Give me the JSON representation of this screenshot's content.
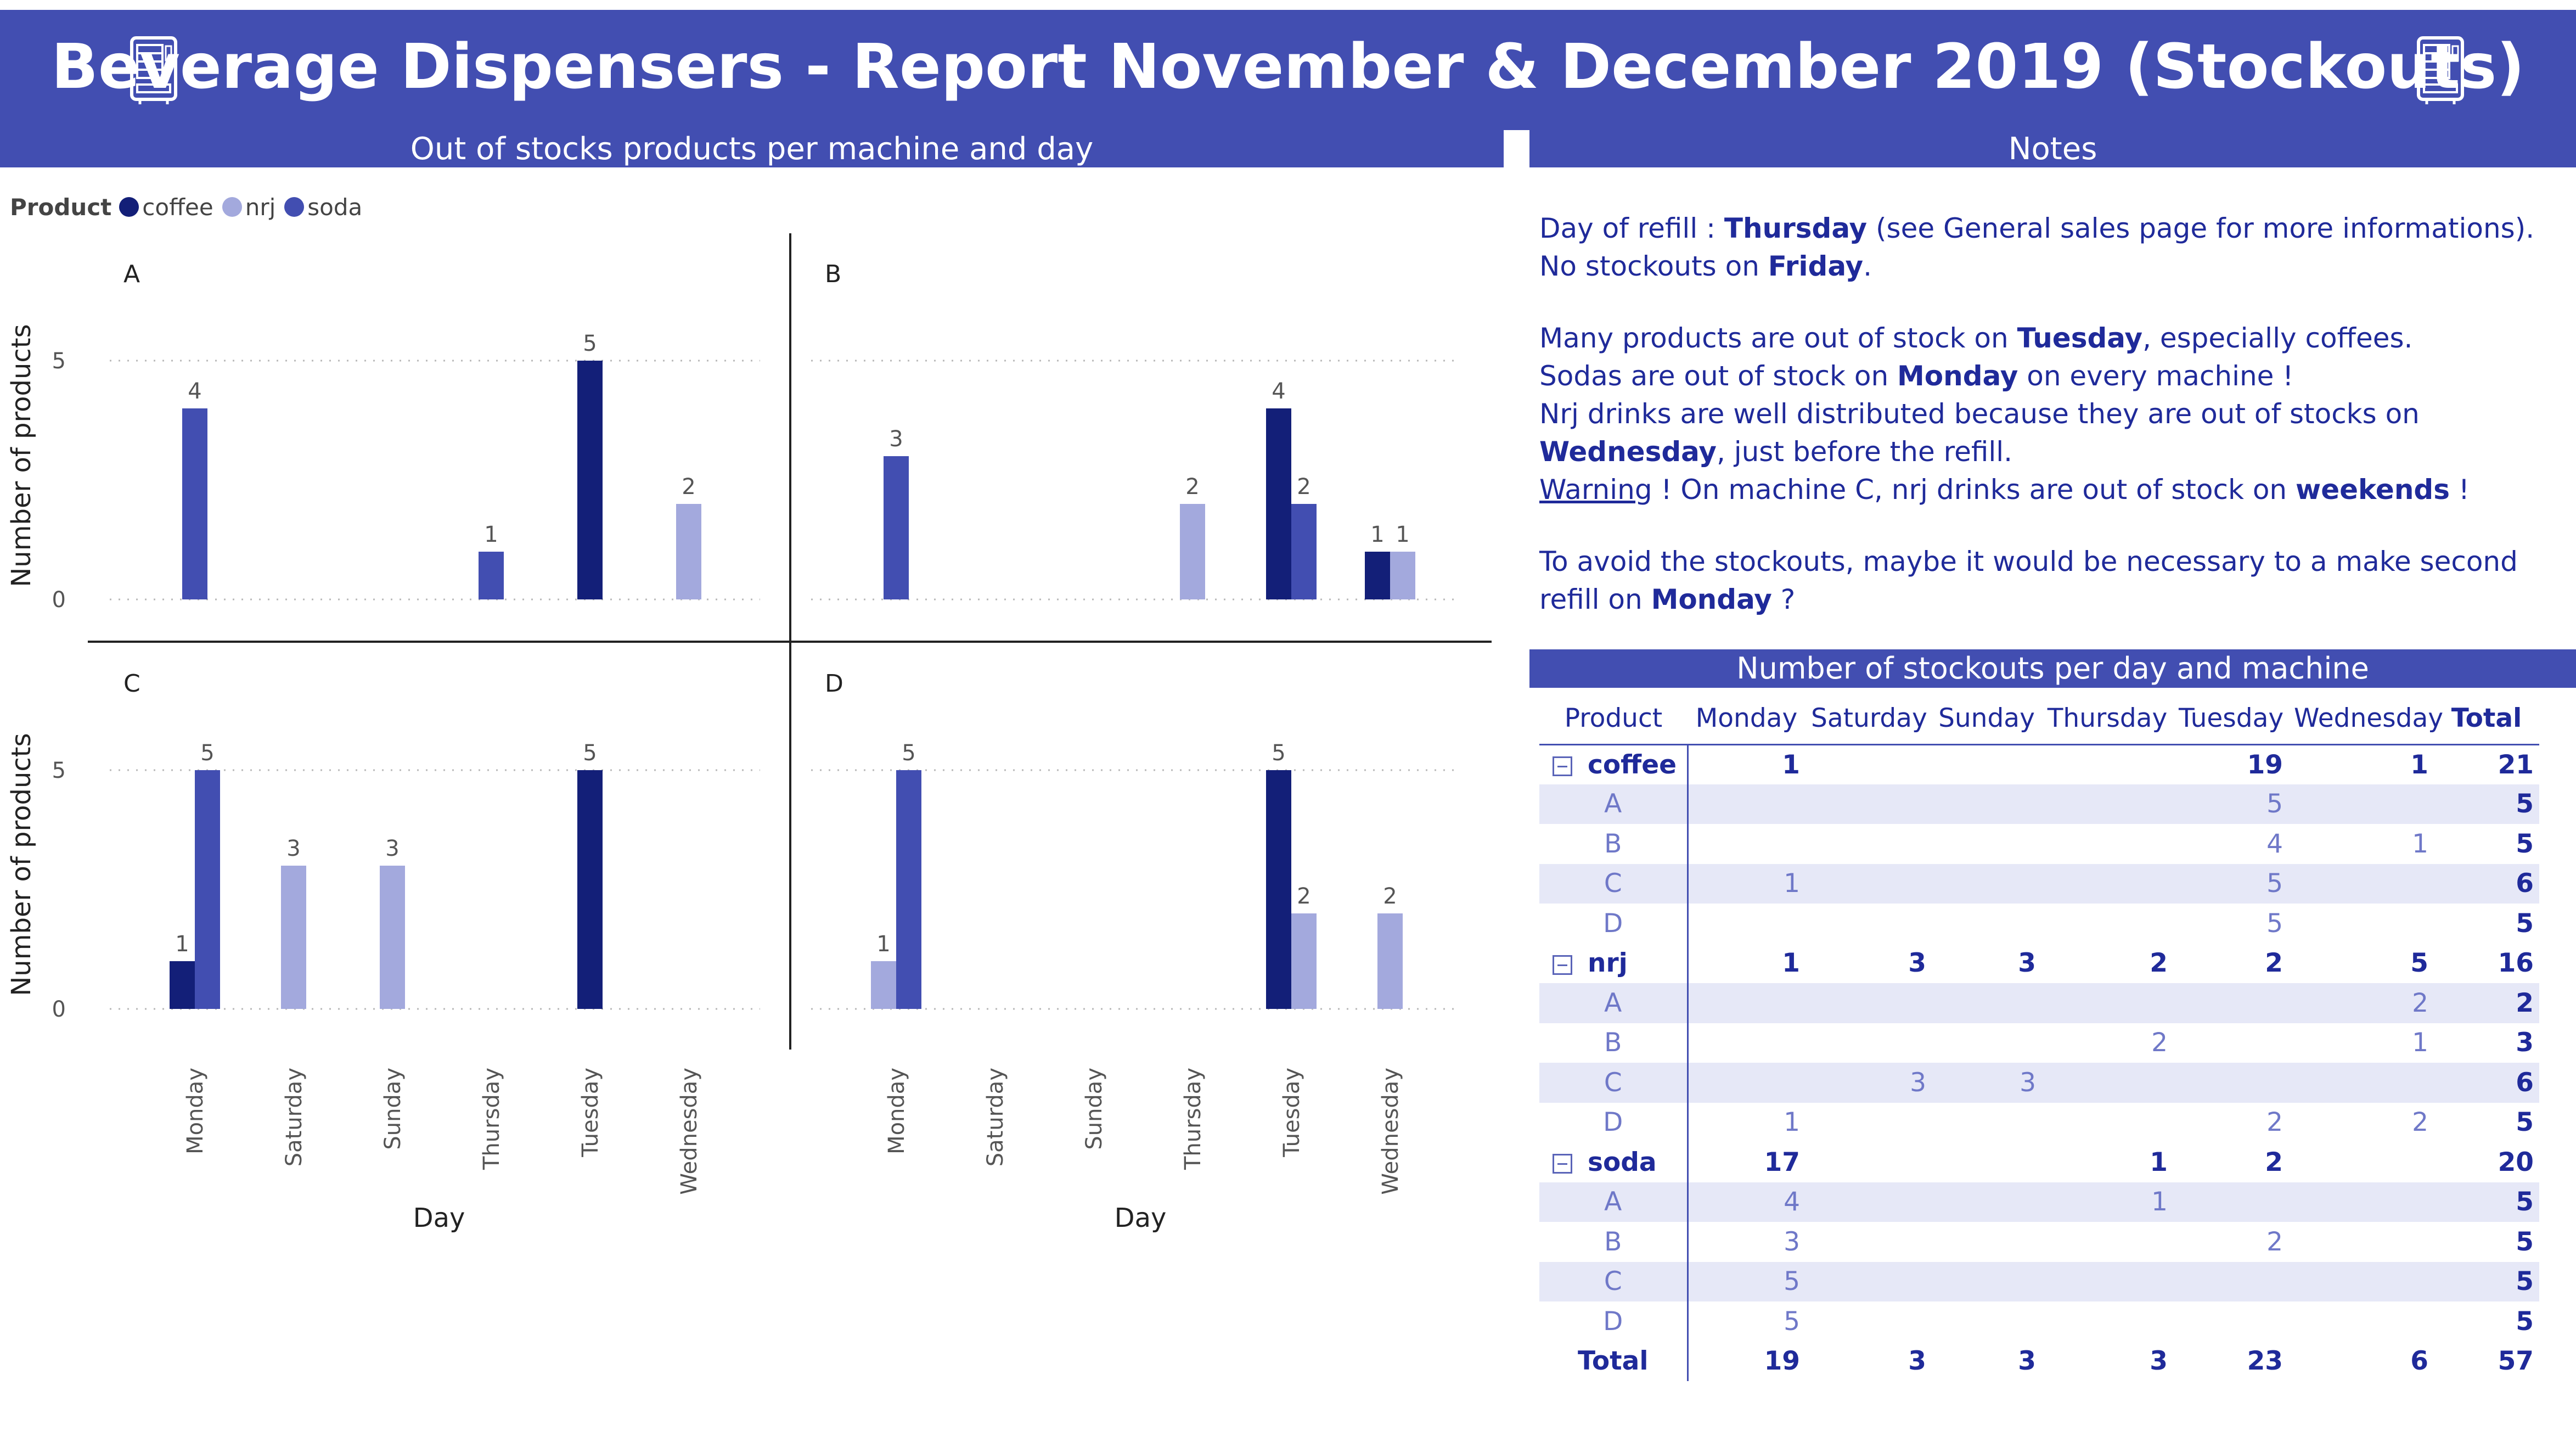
{
  "title": "Beverage Dispensers - Report November & December 2019 (Stockouts)",
  "icons": {
    "left": "vending-machine-icon",
    "right": "vending-machine-icon"
  },
  "colors": {
    "header_bg": "#424eb1",
    "coffee": "#131f78",
    "nrj": "#a3a9dd",
    "soda": "#424eb1",
    "text_dark": "#1f2a9a",
    "band": "#e6e8f7"
  },
  "chart_section_title": "Out of stocks products per machine and day",
  "notes_section_title": "Notes",
  "table_section_title": "Number of stockouts per day and machine",
  "chart_data": {
    "type": "bar",
    "title": "Out of stocks products per machine and day",
    "xlabel": "Day",
    "ylabel": "Number of products",
    "ylim": [
      0,
      5.5
    ],
    "yticks": [
      0,
      5
    ],
    "grid": true,
    "legend": {
      "title": "Product",
      "position": "top-left",
      "entries": [
        "coffee",
        "nrj",
        "soda"
      ]
    },
    "categories": [
      "Monday",
      "Saturday",
      "Sunday",
      "Thursday",
      "Tuesday",
      "Wednesday"
    ],
    "panels": [
      {
        "name": "A",
        "series": [
          {
            "name": "coffee",
            "values": [
              null,
              null,
              null,
              null,
              5,
              null
            ]
          },
          {
            "name": "nrj",
            "values": [
              null,
              null,
              null,
              null,
              null,
              2
            ]
          },
          {
            "name": "soda",
            "values": [
              4,
              null,
              null,
              1,
              null,
              null
            ]
          }
        ]
      },
      {
        "name": "B",
        "series": [
          {
            "name": "coffee",
            "values": [
              null,
              null,
              null,
              null,
              4,
              1
            ]
          },
          {
            "name": "nrj",
            "values": [
              null,
              null,
              null,
              2,
              null,
              1
            ]
          },
          {
            "name": "soda",
            "values": [
              3,
              null,
              null,
              null,
              2,
              null
            ]
          }
        ]
      },
      {
        "name": "C",
        "series": [
          {
            "name": "coffee",
            "values": [
              1,
              null,
              null,
              null,
              5,
              null
            ]
          },
          {
            "name": "nrj",
            "values": [
              null,
              3,
              3,
              null,
              null,
              null
            ]
          },
          {
            "name": "soda",
            "values": [
              5,
              null,
              null,
              null,
              null,
              null
            ]
          }
        ]
      },
      {
        "name": "D",
        "series": [
          {
            "name": "coffee",
            "values": [
              null,
              null,
              null,
              null,
              5,
              null
            ]
          },
          {
            "name": "nrj",
            "values": [
              1,
              null,
              null,
              null,
              2,
              2
            ]
          },
          {
            "name": "soda",
            "values": [
              5,
              null,
              null,
              null,
              null,
              null
            ]
          }
        ]
      }
    ]
  },
  "notes": {
    "p1": [
      "Day of refill : ",
      "Thursday",
      " (see General sales page for more informations)."
    ],
    "p2": [
      "No stockouts on ",
      "Friday",
      "."
    ],
    "p3": [
      "Many products are out of stock on ",
      "Tuesday",
      ", especially coffees."
    ],
    "p4": [
      "Sodas are out of stock on ",
      "Monday",
      " on every machine !"
    ],
    "p5": [
      "Nrj drinks are well distributed because they are out of stocks on ",
      "Wednesday",
      ", just before the refill."
    ],
    "p6": [
      "Warning",
      " ! On machine C, nrj drinks are out of stock on ",
      "weekends",
      " !"
    ],
    "p7": [
      "To avoid the stockouts, maybe it would be necessary to a make second refill on ",
      "Monday",
      " ?"
    ]
  },
  "table": {
    "columns": [
      "Product",
      "Monday",
      "Saturday",
      "Sunday",
      "Thursday",
      "Tuesday",
      "Wednesday",
      "Total"
    ],
    "rows": [
      {
        "type": "group",
        "label": "coffee",
        "cells": [
          "1",
          "",
          "",
          "",
          "19",
          "1",
          "21"
        ]
      },
      {
        "type": "child",
        "label": "A",
        "cells": [
          "",
          "",
          "",
          "",
          "5",
          "",
          "5"
        ]
      },
      {
        "type": "child",
        "label": "B",
        "cells": [
          "",
          "",
          "",
          "",
          "4",
          "1",
          "5"
        ]
      },
      {
        "type": "child",
        "label": "C",
        "cells": [
          "1",
          "",
          "",
          "",
          "5",
          "",
          "6"
        ]
      },
      {
        "type": "child",
        "label": "D",
        "cells": [
          "",
          "",
          "",
          "",
          "5",
          "",
          "5"
        ]
      },
      {
        "type": "group",
        "label": "nrj",
        "cells": [
          "1",
          "3",
          "3",
          "2",
          "2",
          "5",
          "16"
        ]
      },
      {
        "type": "child",
        "label": "A",
        "cells": [
          "",
          "",
          "",
          "",
          "",
          "2",
          "2"
        ]
      },
      {
        "type": "child",
        "label": "B",
        "cells": [
          "",
          "",
          "",
          "2",
          "",
          "1",
          "3"
        ]
      },
      {
        "type": "child",
        "label": "C",
        "cells": [
          "",
          "3",
          "3",
          "",
          "",
          "",
          "6"
        ]
      },
      {
        "type": "child",
        "label": "D",
        "cells": [
          "1",
          "",
          "",
          "",
          "2",
          "2",
          "5"
        ]
      },
      {
        "type": "group",
        "label": "soda",
        "cells": [
          "17",
          "",
          "",
          "1",
          "2",
          "",
          "20"
        ]
      },
      {
        "type": "child",
        "label": "A",
        "cells": [
          "4",
          "",
          "",
          "1",
          "",
          "",
          "5"
        ]
      },
      {
        "type": "child",
        "label": "B",
        "cells": [
          "3",
          "",
          "",
          "",
          "2",
          "",
          "5"
        ]
      },
      {
        "type": "child",
        "label": "C",
        "cells": [
          "5",
          "",
          "",
          "",
          "",
          "",
          "5"
        ]
      },
      {
        "type": "child",
        "label": "D",
        "cells": [
          "5",
          "",
          "",
          "",
          "",
          "",
          "5"
        ]
      },
      {
        "type": "total",
        "label": "Total",
        "cells": [
          "19",
          "3",
          "3",
          "3",
          "23",
          "6",
          "57"
        ]
      }
    ]
  }
}
